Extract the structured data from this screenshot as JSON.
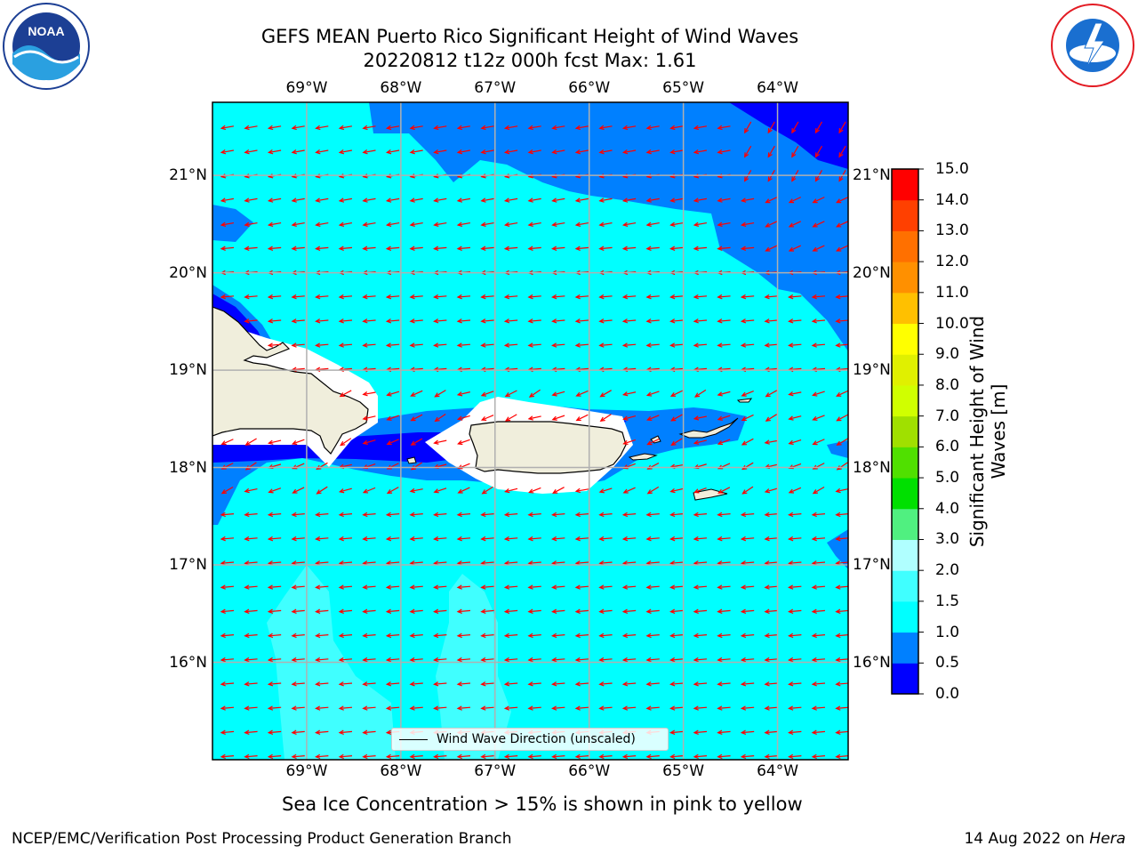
{
  "header": {
    "title_line1": "GEFS MEAN Puerto Rico Significant Height of Wind Waves",
    "title_line2": "20220812 t12z 000h fcst   Max: 1.61"
  },
  "logos": {
    "left": "noaa-logo",
    "right": "national-weather-service-logo"
  },
  "map": {
    "lon_labels": [
      "69°W",
      "68°W",
      "67°W",
      "66°W",
      "65°W",
      "64°W"
    ],
    "lat_labels": [
      "21°N",
      "20°N",
      "19°N",
      "18°N",
      "17°N",
      "16°N"
    ],
    "lon_values": [
      -69,
      -68,
      -67,
      -66,
      -65,
      -64
    ],
    "lat_values": [
      21,
      20,
      19,
      18,
      17,
      16
    ],
    "extent": {
      "lon_min": -70,
      "lon_max": -63.25,
      "lat_min": 15,
      "lat_max": 21.75
    },
    "legend_label": "Wind Wave Direction (unscaled)",
    "arrow_color": "#ff0000",
    "land_color": "#f0eedc",
    "grid": true
  },
  "colorbar": {
    "label": "Significant Height of Wind Waves [m]",
    "label_line1": "Significant Height of Wind",
    "label_line2": "Waves [m]",
    "ticks": [
      "15.0",
      "14.0",
      "13.0",
      "12.0",
      "11.0",
      "10.0",
      "9.0",
      "8.0",
      "7.0",
      "6.0",
      "5.0",
      "4.0",
      "3.0",
      "2.0",
      "1.5",
      "1.0",
      "0.5",
      "0.0"
    ],
    "colors_bottom_to_top": [
      "#0000ff",
      "#0080ff",
      "#00ffff",
      "#40ffff",
      "#b0ffff",
      "#50f080",
      "#00e000",
      "#50e000",
      "#a0e000",
      "#d0ff00",
      "#e0f000",
      "#ffff00",
      "#ffc000",
      "#ff9000",
      "#ff7000",
      "#ff4000",
      "#ff0000"
    ]
  },
  "subtitle": "Sea Ice Concentration > 15% is shown in pink to yellow",
  "footer": {
    "left": "NCEP/EMC/Verification Post Processing Product Generation Branch",
    "right_prefix": "14 Aug 2022 on ",
    "right_host": "Hera"
  }
}
